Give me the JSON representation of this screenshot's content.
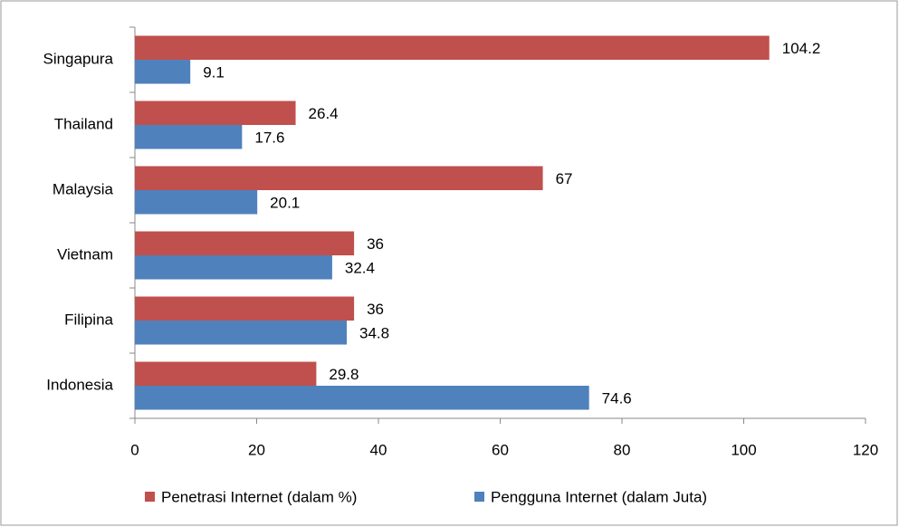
{
  "chart_data": {
    "type": "bar",
    "orientation": "horizontal",
    "categories": [
      "Singapura",
      "Thailand",
      "Malaysia",
      "Vietnam",
      "Filipina",
      "Indonesia"
    ],
    "series": [
      {
        "name": "Penetrasi Internet (dalam %)",
        "color": "#c0504d",
        "values": [
          104.2,
          26.4,
          67,
          36,
          36,
          29.8
        ]
      },
      {
        "name": "Pengguna Internet (dalam Juta)",
        "color": "#4f81bd",
        "values": [
          9.1,
          17.6,
          20.1,
          32.4,
          34.8,
          74.6
        ]
      }
    ],
    "xlim": [
      0,
      120
    ],
    "xticks": [
      0,
      20,
      40,
      60,
      80,
      100,
      120
    ],
    "grid": false,
    "legend": "bottom"
  }
}
